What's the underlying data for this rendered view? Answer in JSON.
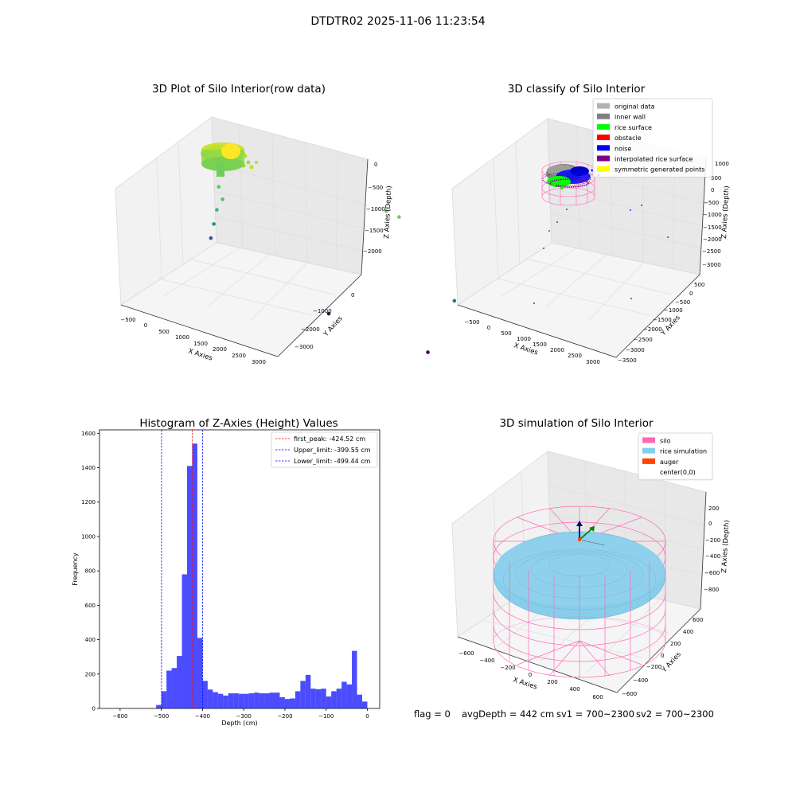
{
  "figure": {
    "suptitle": "DTDTR02 2025-11-06 11:23:54",
    "footer": {
      "flag": "flag = 0",
      "avg_depth": "avgDepth = 442 cm",
      "sv1": "sv1 = 700~2300",
      "sv2": "sv2 = 700~2300"
    }
  },
  "chart_data": [
    {
      "id": "raw",
      "type": "scatter3d",
      "title": "3D Plot of Silo Interior(row data)",
      "xlabel": "X Axies",
      "ylabel": "Y Axies",
      "zlabel": "Z Axies (Depth)",
      "xticks": [
        "−500",
        "0",
        "500",
        "1000",
        "1500",
        "2000",
        "2500",
        "3000"
      ],
      "yticks": [
        "0",
        "−1000",
        "−2000",
        "−3000"
      ],
      "zticks": [
        "0",
        "−500",
        "−1000",
        "−1500",
        "−2000"
      ],
      "colormap": "viridis",
      "points": [
        {
          "x": 120,
          "y": 200,
          "z": -1050,
          "color": "#5ec962"
        },
        {
          "x": 160,
          "y": 150,
          "z": -1250,
          "color": "#4ac16d"
        },
        {
          "x": 90,
          "y": 180,
          "z": -1500,
          "color": "#35b779"
        },
        {
          "x": 60,
          "y": 200,
          "z": -1800,
          "color": "#21918c"
        },
        {
          "x": 30,
          "y": 220,
          "z": -2100,
          "color": "#3b528b"
        },
        {
          "x": 900,
          "y": -1700,
          "z": -2050,
          "color": "#440154"
        },
        {
          "x": 2400,
          "y": -1900,
          "z": -2150,
          "color": "#440154"
        },
        {
          "x": 2600,
          "y": -200,
          "z": -400,
          "color": "#7ad151"
        },
        {
          "x": 2700,
          "y": -400,
          "z": -350,
          "color": "#6ece58"
        },
        {
          "x": 2800,
          "y": -1900,
          "z": -1000,
          "color": "#2c728e"
        }
      ]
    },
    {
      "id": "classify",
      "type": "scatter3d",
      "title": "3D classify of Silo Interior",
      "xlabel": "X Axies",
      "ylabel": "Y Axies",
      "zlabel": "Z Axies (Depth)",
      "xticks": [
        "−500",
        "0",
        "500",
        "1000",
        "1500",
        "2000",
        "2500",
        "3000"
      ],
      "yticks": [
        "500",
        "0",
        "−500",
        "−1000",
        "−1500",
        "−2000",
        "−2500",
        "−3000",
        "−3500"
      ],
      "zticks": [
        "1000",
        "500",
        "0",
        "−500",
        "−1000",
        "−1500",
        "−2000",
        "−2500",
        "−3000"
      ],
      "legend": [
        {
          "label": "original data",
          "color": "#b3b3b3"
        },
        {
          "label": "inner wall",
          "color": "#808080"
        },
        {
          "label": "rice surface",
          "color": "#00ff00"
        },
        {
          "label": "obstacle",
          "color": "#ff0000"
        },
        {
          "label": "noise",
          "color": "#0000ff"
        },
        {
          "label": "interpolated rice surface",
          "color": "#800080"
        },
        {
          "label": "symmetric generated points",
          "color": "#ffff00"
        }
      ],
      "legend_loc": "upper right"
    },
    {
      "id": "hist",
      "type": "bar",
      "title": "Histogram of Z-Axies (Height) Values",
      "xlabel": "Depth (cm)",
      "ylabel": "Frequency",
      "xlim": [
        -650,
        30
      ],
      "ylim": [
        0,
        1620
      ],
      "xticks": [
        -600,
        -500,
        -400,
        -300,
        -200,
        -100,
        0
      ],
      "xtick_labels": [
        "−600",
        "−500",
        "−400",
        "−300",
        "−200",
        "−100",
        "0"
      ],
      "yticks": [
        0,
        200,
        400,
        600,
        800,
        1000,
        1200,
        1400,
        1600
      ],
      "bar_color": "#0000ff",
      "bin_width": 12.5,
      "bins": [
        {
          "x": -512.5,
          "v": 20
        },
        {
          "x": -500,
          "v": 100
        },
        {
          "x": -487.5,
          "v": 220
        },
        {
          "x": -475,
          "v": 235
        },
        {
          "x": -462.5,
          "v": 305
        },
        {
          "x": -450,
          "v": 780
        },
        {
          "x": -437.5,
          "v": 1410
        },
        {
          "x": -425,
          "v": 1540
        },
        {
          "x": -412.5,
          "v": 410
        },
        {
          "x": -400,
          "v": 160
        },
        {
          "x": -387.5,
          "v": 110
        },
        {
          "x": -375,
          "v": 95
        },
        {
          "x": -362.5,
          "v": 85
        },
        {
          "x": -350,
          "v": 75
        },
        {
          "x": -337.5,
          "v": 88
        },
        {
          "x": -325,
          "v": 88
        },
        {
          "x": -312.5,
          "v": 85
        },
        {
          "x": -300,
          "v": 85
        },
        {
          "x": -287.5,
          "v": 88
        },
        {
          "x": -275,
          "v": 92
        },
        {
          "x": -262.5,
          "v": 88
        },
        {
          "x": -250,
          "v": 88
        },
        {
          "x": -237.5,
          "v": 92
        },
        {
          "x": -225,
          "v": 92
        },
        {
          "x": -212.5,
          "v": 65
        },
        {
          "x": -200,
          "v": 55
        },
        {
          "x": -187.5,
          "v": 58
        },
        {
          "x": -175,
          "v": 100
        },
        {
          "x": -162.5,
          "v": 160
        },
        {
          "x": -150,
          "v": 195
        },
        {
          "x": -137.5,
          "v": 115
        },
        {
          "x": -125,
          "v": 112
        },
        {
          "x": -112.5,
          "v": 115
        },
        {
          "x": -100,
          "v": 70
        },
        {
          "x": -87.5,
          "v": 100
        },
        {
          "x": -75,
          "v": 115
        },
        {
          "x": -62.5,
          "v": 155
        },
        {
          "x": -50,
          "v": 140
        },
        {
          "x": -37.5,
          "v": 335
        },
        {
          "x": -25,
          "v": 80
        },
        {
          "x": -12.5,
          "v": 40
        }
      ],
      "lines": [
        {
          "label": "first_peak: -424.52 cm",
          "x": -424.52,
          "color": "#ff0000"
        },
        {
          "label": "Upper_limit: -399.55 cm",
          "x": -399.55,
          "color": "#0000ff"
        },
        {
          "label": "Lower_limit: -499.44 cm",
          "x": -499.44,
          "color": "#0000ff"
        }
      ],
      "legend_loc": "upper right"
    },
    {
      "id": "sim",
      "type": "surface3d",
      "title": "3D simulation of Silo Interior",
      "xlabel": "X Axies",
      "ylabel": "Y Axies",
      "zlabel": "Z Axies (Depth)",
      "xticks": [
        "−600",
        "−400",
        "−200",
        "0",
        "200",
        "400",
        "600"
      ],
      "yticks": [
        "600",
        "400",
        "200",
        "0",
        "−200",
        "−400",
        "−600"
      ],
      "zticks": [
        "200",
        "0",
        "−200",
        "−400",
        "−600",
        "−800"
      ],
      "legend": [
        {
          "label": "silo",
          "color": "#ff69b4"
        },
        {
          "label": "rice simulation",
          "color": "#87ceeb"
        },
        {
          "label": "auger",
          "color": "#ff4500"
        },
        {
          "label": "center(0,0)",
          "color": ""
        }
      ],
      "legend_loc": "upper right"
    }
  ]
}
